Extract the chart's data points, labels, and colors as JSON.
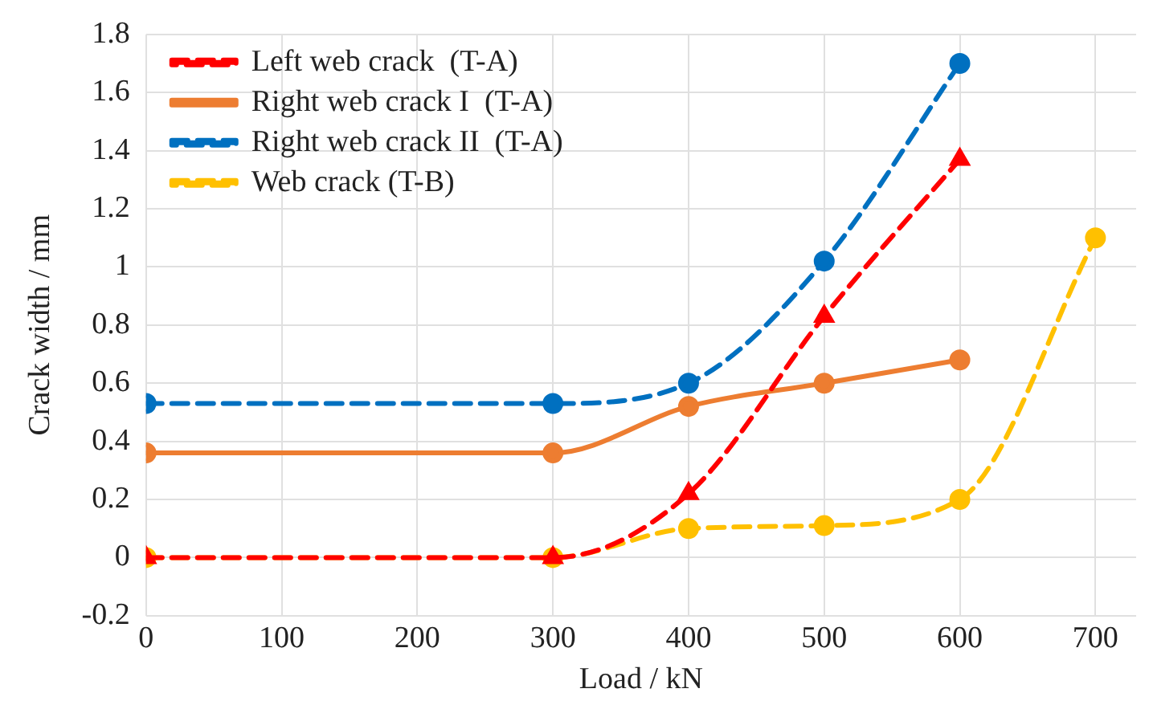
{
  "chart_data": {
    "type": "line",
    "xlabel": "Load / kN",
    "ylabel": "Crack width / mm",
    "xlim": [
      0,
      730
    ],
    "xticks": [
      0,
      100,
      200,
      300,
      400,
      500,
      600,
      700
    ],
    "ylim": [
      -0.2,
      1.8
    ],
    "yticks": [
      -0.2,
      0,
      0.2,
      0.4,
      0.6,
      0.8,
      1,
      1.2,
      1.4,
      1.6,
      1.8
    ],
    "grid": true,
    "legend": "top left",
    "series": [
      {
        "name": "Left web crack  (T-A)",
        "color": "#ff0000",
        "marker": "triangle",
        "line_style": "dashed",
        "x": [
          0,
          300,
          400,
          500,
          600
        ],
        "values": [
          0,
          0,
          0.22,
          0.83,
          1.37
        ]
      },
      {
        "name": "Right web crack I  (T-A)",
        "color": "#ed7d31",
        "marker": "circle",
        "line_style": "solid",
        "x": [
          0,
          300,
          400,
          500,
          600
        ],
        "values": [
          0.36,
          0.36,
          0.52,
          0.6,
          0.68
        ]
      },
      {
        "name": "Right web crack II  (T-A)",
        "color": "#0070c0",
        "marker": "circle",
        "line_style": "dashed",
        "x": [
          0,
          300,
          400,
          500,
          600
        ],
        "values": [
          0.53,
          0.53,
          0.6,
          1.02,
          1.7
        ]
      },
      {
        "name": "Web crack (T-B)",
        "color": "#ffc000",
        "marker": "circle",
        "line_style": "dashed",
        "x": [
          0,
          300,
          400,
          500,
          600,
          700
        ],
        "values": [
          0,
          0,
          0.1,
          0.11,
          0.2,
          1.1
        ]
      }
    ]
  }
}
